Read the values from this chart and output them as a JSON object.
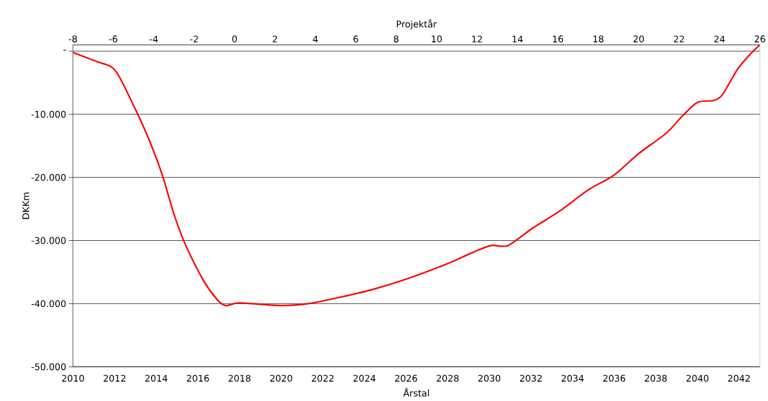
{
  "chart_data": {
    "type": "line",
    "xlabel": "Årstal",
    "ylabel": "DKKm",
    "x2label": "Projektår",
    "x": [
      2010,
      2011.2,
      2011.8,
      2012.2,
      2013.07,
      2013.74,
      2014.3,
      2014.85,
      2015.42,
      2016.26,
      2016.94,
      2017.34,
      2018.0,
      2019.97,
      2021.3,
      2022.66,
      2024.35,
      2026.03,
      2028.05,
      2029.06,
      2030.07,
      2030.9,
      2032.1,
      2033.44,
      2034.79,
      2035.97,
      2037.15,
      2038.5,
      2039.3,
      2040.0,
      2040.8,
      2041.2,
      2041.9,
      2042.5,
      2043
    ],
    "series": [
      {
        "color": "#ff0000",
        "values": [
          -200,
          -1700,
          -2400,
          -3900,
          -9700,
          -14700,
          -19700,
          -25800,
          -30800,
          -36300,
          -39400,
          -40300,
          -39900,
          -40300,
          -40000,
          -39100,
          -37800,
          -36100,
          -33600,
          -32100,
          -30800,
          -30800,
          -28000,
          -25200,
          -21900,
          -19700,
          -16300,
          -13000,
          -10200,
          -8100,
          -7800,
          -6900,
          -3000,
          -600,
          1000
        ]
      }
    ],
    "xlim": [
      2010,
      2043
    ],
    "xticks": [
      2010,
      2012,
      2014,
      2016,
      2018,
      2020,
      2022,
      2024,
      2026,
      2028,
      2030,
      2032,
      2034,
      2036,
      2038,
      2040,
      2042
    ],
    "x2lim": [
      -8,
      26
    ],
    "x2ticks": [
      -8,
      -6,
      -4,
      -2,
      0,
      2,
      4,
      6,
      8,
      10,
      12,
      14,
      16,
      18,
      20,
      22,
      24,
      26
    ],
    "ylim": [
      -50000,
      1000
    ],
    "yticks": [
      {
        "value": -50000,
        "label": "-50.000"
      },
      {
        "value": -40000,
        "label": "-40.000"
      },
      {
        "value": -30000,
        "label": "-30.000"
      },
      {
        "value": -20000,
        "label": "-20.000"
      },
      {
        "value": -10000,
        "label": "-10.000"
      },
      {
        "value": 0,
        "label": "-"
      }
    ],
    "grid": "y",
    "marker": "none",
    "line_style": "solid"
  }
}
